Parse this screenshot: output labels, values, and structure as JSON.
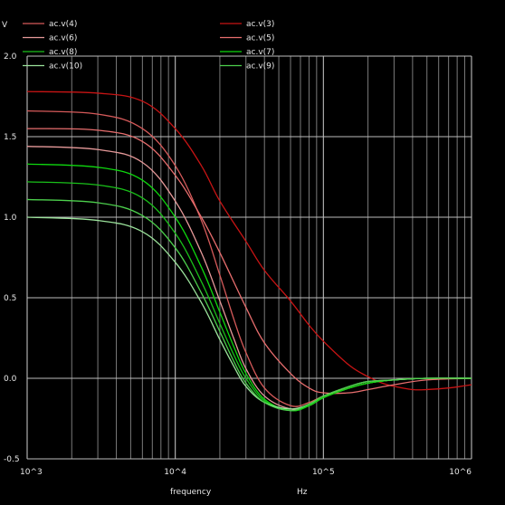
{
  "chart_data": {
    "type": "line",
    "x_scale": "log",
    "xlim": [
      1000,
      1000000
    ],
    "ylim": [
      -0.5,
      2.0
    ],
    "grid": true,
    "legend_position": "top",
    "y_unit": "V",
    "xlabel": "frequency",
    "x_unit": "Hz",
    "x_tick_labels": [
      "10^3",
      "10^4",
      "10^5",
      "10^6"
    ],
    "y_tick_labels": [
      "2.0",
      "1.5",
      "1.0",
      "0.5",
      "0.0",
      "-0.5"
    ],
    "y_ticks": [
      2.0,
      1.5,
      1.0,
      0.5,
      0.0,
      -0.5
    ],
    "series": [
      {
        "name": "ac.v(4)",
        "color": "#d65a5a",
        "x": [
          1000,
          3000,
          6000,
          10000,
          15000,
          20000,
          25000,
          30000,
          40000,
          60000,
          80000,
          100000,
          150000,
          200000,
          300000,
          500000,
          1000000
        ],
        "y": [
          1.66,
          1.64,
          1.55,
          1.32,
          0.98,
          0.64,
          0.36,
          0.16,
          -0.06,
          -0.17,
          -0.15,
          -0.11,
          -0.06,
          -0.03,
          -0.01,
          0.0,
          0.0
        ]
      },
      {
        "name": "ac.v(3)",
        "color": "#c81414",
        "x": [
          1000,
          3000,
          6000,
          10000,
          15000,
          20000,
          30000,
          40000,
          60000,
          80000,
          100000,
          150000,
          200000,
          250000,
          300000,
          400000,
          500000,
          700000,
          1000000
        ],
        "y": [
          1.78,
          1.77,
          1.72,
          1.55,
          1.32,
          1.1,
          0.85,
          0.67,
          0.48,
          0.33,
          0.23,
          0.08,
          0.01,
          -0.03,
          -0.05,
          -0.07,
          -0.07,
          -0.06,
          -0.04
        ]
      },
      {
        "name": "ac.v(6)",
        "color": "#e79a9a",
        "x": [
          1000,
          3000,
          6000,
          10000,
          15000,
          20000,
          25000,
          30000,
          40000,
          60000,
          80000,
          100000,
          150000,
          200000,
          300000,
          500000,
          1000000
        ],
        "y": [
          1.44,
          1.42,
          1.34,
          1.1,
          0.78,
          0.48,
          0.24,
          0.06,
          -0.11,
          -0.19,
          -0.17,
          -0.12,
          -0.06,
          -0.03,
          -0.01,
          0.0,
          0.0
        ]
      },
      {
        "name": "ac.v(5)",
        "color": "#e86e6e",
        "x": [
          1000,
          3000,
          6000,
          10000,
          15000,
          20000,
          30000,
          40000,
          60000,
          80000,
          100000,
          150000,
          200000,
          300000,
          500000,
          1000000
        ],
        "y": [
          1.55,
          1.54,
          1.47,
          1.26,
          1.0,
          0.78,
          0.44,
          0.22,
          0.03,
          -0.06,
          -0.09,
          -0.09,
          -0.07,
          -0.04,
          -0.01,
          0.0
        ]
      },
      {
        "name": "ac.v(8)",
        "color": "#19c019",
        "x": [
          1000,
          3000,
          6000,
          10000,
          15000,
          20000,
          25000,
          30000,
          40000,
          60000,
          80000,
          100000,
          150000,
          200000,
          300000,
          500000,
          1000000
        ],
        "y": [
          1.22,
          1.2,
          1.12,
          0.9,
          0.6,
          0.34,
          0.14,
          0.0,
          -0.14,
          -0.2,
          -0.17,
          -0.12,
          -0.06,
          -0.03,
          -0.01,
          0.0,
          0.0
        ]
      },
      {
        "name": "ac.v(7)",
        "color": "#0ed80e",
        "x": [
          1000,
          3000,
          6000,
          10000,
          15000,
          20000,
          25000,
          30000,
          40000,
          60000,
          80000,
          100000,
          150000,
          200000,
          300000,
          500000,
          1000000
        ],
        "y": [
          1.33,
          1.31,
          1.23,
          1.0,
          0.69,
          0.41,
          0.19,
          0.03,
          -0.13,
          -0.2,
          -0.17,
          -0.12,
          -0.06,
          -0.03,
          -0.01,
          0.0,
          0.0
        ]
      },
      {
        "name": "ac.v(10)",
        "color": "#9be39b",
        "x": [
          1000,
          3000,
          6000,
          10000,
          15000,
          20000,
          25000,
          30000,
          40000,
          60000,
          80000,
          100000,
          150000,
          200000,
          300000,
          500000,
          1000000
        ],
        "y": [
          1.0,
          0.98,
          0.91,
          0.72,
          0.47,
          0.24,
          0.07,
          -0.05,
          -0.15,
          -0.19,
          -0.16,
          -0.11,
          -0.05,
          -0.02,
          -0.01,
          0.0,
          0.0
        ]
      },
      {
        "name": "ac.v(9)",
        "color": "#4ccf4c",
        "x": [
          1000,
          3000,
          6000,
          10000,
          15000,
          20000,
          25000,
          30000,
          40000,
          60000,
          80000,
          100000,
          150000,
          200000,
          300000,
          500000,
          1000000
        ],
        "y": [
          1.11,
          1.09,
          1.01,
          0.81,
          0.53,
          0.29,
          0.1,
          -0.03,
          -0.15,
          -0.2,
          -0.16,
          -0.11,
          -0.05,
          -0.02,
          -0.01,
          0.0,
          0.0
        ]
      }
    ]
  }
}
